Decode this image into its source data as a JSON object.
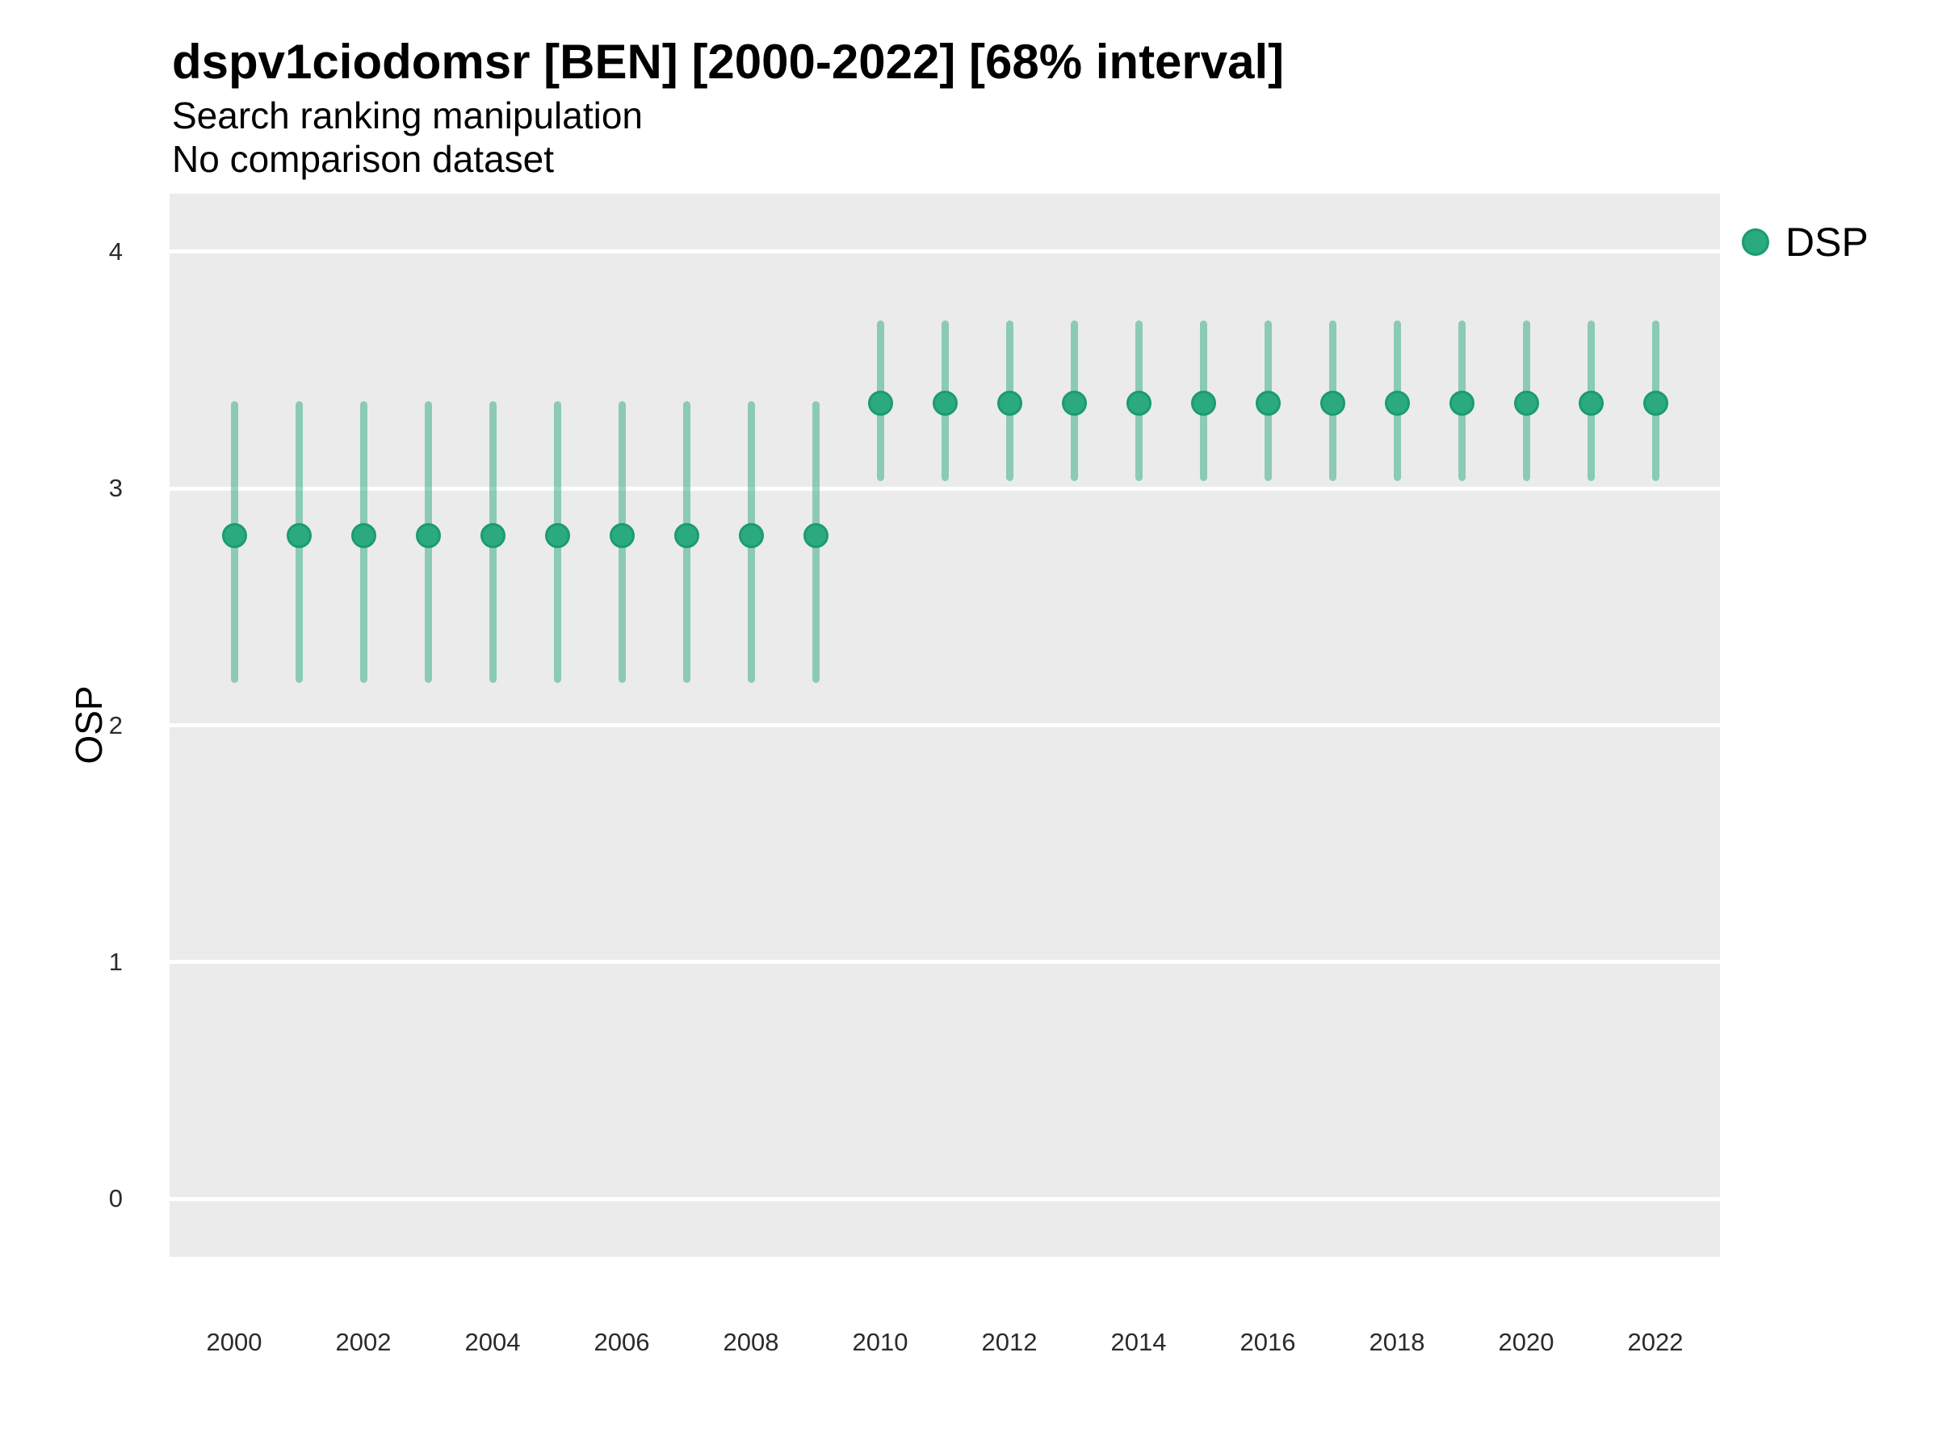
{
  "header": {
    "title": "dspv1ciodomsr [BEN] [2000-2022] [68% interval]",
    "subtitle": "Search ranking manipulation",
    "subtitle2": "No comparison dataset"
  },
  "axes": {
    "y_title": "OSP"
  },
  "legend": {
    "items": [
      {
        "label": "DSP",
        "color": "#2baa80",
        "border_color": "#1c9b70"
      }
    ]
  },
  "colors": {
    "panel_background": "#EBEBEB",
    "gridline": "#FFFFFF",
    "point_fill": "#2baa80",
    "point_border": "#1c9b70",
    "range_line": "rgba(43,170,128,0.5)",
    "text": "#000000",
    "tick_text": "#2b2b2b"
  },
  "chart_data": {
    "type": "pointrange",
    "title": "dspv1ciodomsr [BEN] [2000-2022] [68% interval]",
    "subtitle": "Search ranking manipulation",
    "note": "No comparison dataset",
    "interval": "68%",
    "xlabel": "",
    "ylabel": "OSP",
    "xlim": [
      1999,
      2023
    ],
    "ylim": [
      -0.245,
      4.245
    ],
    "y_ticks": [
      0,
      1,
      2,
      3,
      4
    ],
    "x_tick_labels": [
      2000,
      2002,
      2004,
      2006,
      2008,
      2010,
      2012,
      2014,
      2016,
      2018,
      2020,
      2022
    ],
    "grid": "major-horizontal-only",
    "legend_position": "right-top",
    "series": [
      {
        "name": "DSP",
        "points": [
          {
            "x": 2000,
            "y": 2.8,
            "low": 2.18,
            "high": 3.37
          },
          {
            "x": 2001,
            "y": 2.8,
            "low": 2.18,
            "high": 3.37
          },
          {
            "x": 2002,
            "y": 2.8,
            "low": 2.18,
            "high": 3.37
          },
          {
            "x": 2003,
            "y": 2.8,
            "low": 2.18,
            "high": 3.37
          },
          {
            "x": 2004,
            "y": 2.8,
            "low": 2.18,
            "high": 3.37
          },
          {
            "x": 2005,
            "y": 2.8,
            "low": 2.18,
            "high": 3.37
          },
          {
            "x": 2006,
            "y": 2.8,
            "low": 2.18,
            "high": 3.37
          },
          {
            "x": 2007,
            "y": 2.8,
            "low": 2.18,
            "high": 3.37
          },
          {
            "x": 2008,
            "y": 2.8,
            "low": 2.18,
            "high": 3.37
          },
          {
            "x": 2009,
            "y": 2.8,
            "low": 2.18,
            "high": 3.37
          },
          {
            "x": 2010,
            "y": 3.36,
            "low": 3.03,
            "high": 3.71
          },
          {
            "x": 2011,
            "y": 3.36,
            "low": 3.03,
            "high": 3.71
          },
          {
            "x": 2012,
            "y": 3.36,
            "low": 3.03,
            "high": 3.71
          },
          {
            "x": 2013,
            "y": 3.36,
            "low": 3.03,
            "high": 3.71
          },
          {
            "x": 2014,
            "y": 3.36,
            "low": 3.03,
            "high": 3.71
          },
          {
            "x": 2015,
            "y": 3.36,
            "low": 3.03,
            "high": 3.71
          },
          {
            "x": 2016,
            "y": 3.36,
            "low": 3.03,
            "high": 3.71
          },
          {
            "x": 2017,
            "y": 3.36,
            "low": 3.03,
            "high": 3.71
          },
          {
            "x": 2018,
            "y": 3.36,
            "low": 3.03,
            "high": 3.71
          },
          {
            "x": 2019,
            "y": 3.36,
            "low": 3.03,
            "high": 3.71
          },
          {
            "x": 2020,
            "y": 3.36,
            "low": 3.03,
            "high": 3.71
          },
          {
            "x": 2021,
            "y": 3.36,
            "low": 3.03,
            "high": 3.71
          },
          {
            "x": 2022,
            "y": 3.36,
            "low": 3.03,
            "high": 3.71
          }
        ]
      }
    ]
  }
}
